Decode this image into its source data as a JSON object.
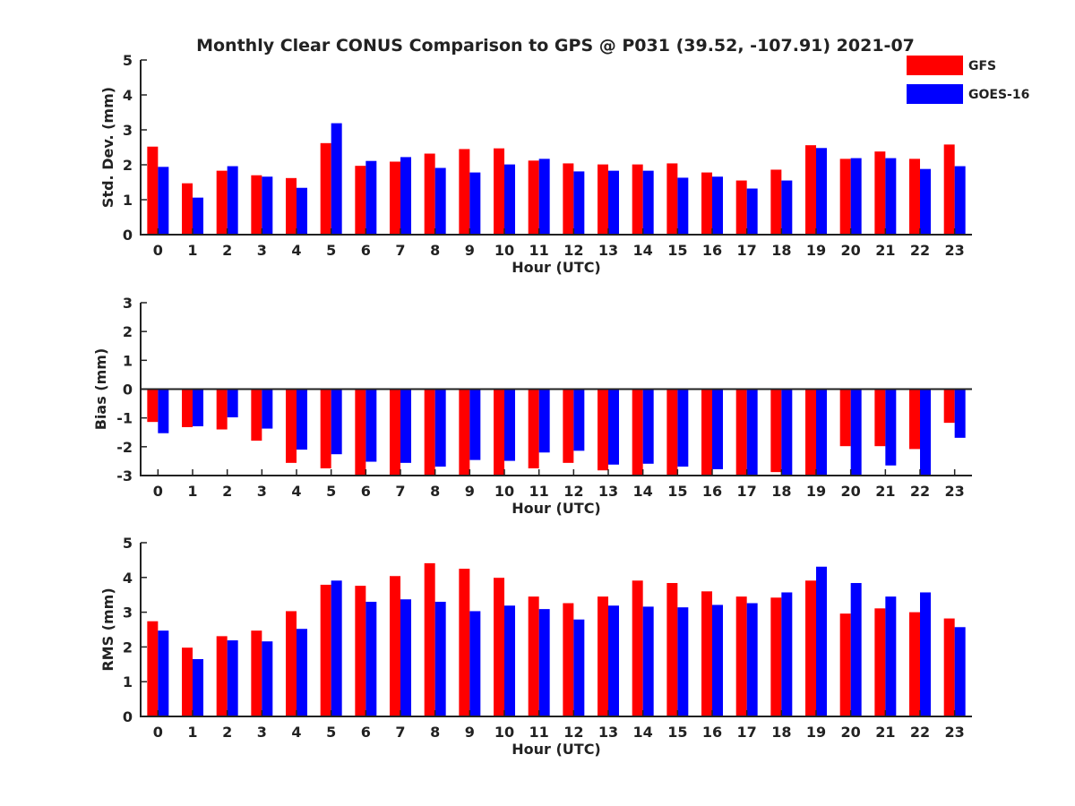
{
  "title": "Monthly Clear CONUS Comparison to GPS @ P031 (39.52, -107.91) 2021-07",
  "colors": {
    "GFS": "#ff0000",
    "GOES-16": "#0000ff",
    "axis": "#222222"
  },
  "chart_data": [
    {
      "type": "bar",
      "categories": [
        "0",
        "1",
        "2",
        "3",
        "4",
        "5",
        "6",
        "7",
        "8",
        "9",
        "10",
        "11",
        "12",
        "13",
        "14",
        "15",
        "16",
        "17",
        "18",
        "19",
        "20",
        "21",
        "22",
        "23"
      ],
      "xlabel": "Hour (UTC)",
      "ylabel": "Std. Dev. (mm)",
      "ylim": [
        0,
        5
      ],
      "yticks": [
        "0",
        "1",
        "2",
        "3",
        "4",
        "5"
      ],
      "legend": {
        "placement": "top-right",
        "entries": [
          "GFS",
          "GOES-16"
        ]
      },
      "series": [
        {
          "name": "GFS",
          "values": [
            2.52,
            1.47,
            1.83,
            1.7,
            1.62,
            2.62,
            1.97,
            2.09,
            2.32,
            2.45,
            2.47,
            2.12,
            2.04,
            2.01,
            2.01,
            2.04,
            1.78,
            1.55,
            1.86,
            2.56,
            2.17,
            2.38,
            2.17,
            2.58
          ]
        },
        {
          "name": "GOES-16",
          "values": [
            1.94,
            1.06,
            1.96,
            1.66,
            1.34,
            3.19,
            2.11,
            2.22,
            1.91,
            1.78,
            2.01,
            2.17,
            1.81,
            1.83,
            1.83,
            1.63,
            1.66,
            1.32,
            1.55,
            2.48,
            2.19,
            2.19,
            1.88,
            1.96
          ]
        }
      ]
    },
    {
      "type": "bar",
      "categories": [
        "0",
        "1",
        "2",
        "3",
        "4",
        "5",
        "6",
        "7",
        "8",
        "9",
        "10",
        "11",
        "12",
        "13",
        "14",
        "15",
        "16",
        "17",
        "18",
        "19",
        "20",
        "21",
        "22",
        "23"
      ],
      "xlabel": "Hour (UTC)",
      "ylabel": "Bias (mm)",
      "ylim": [
        -3,
        3
      ],
      "yticks": [
        "-3",
        "-2",
        "-1",
        "0",
        "1",
        "2",
        "3"
      ],
      "series": [
        {
          "name": "GFS",
          "values": [
            -1.14,
            -1.32,
            -1.4,
            -1.79,
            -2.56,
            -2.75,
            -3.0,
            -3.0,
            -3.0,
            -3.0,
            -3.0,
            -2.75,
            -2.56,
            -2.82,
            -3.0,
            -3.0,
            -3.0,
            -3.0,
            -2.88,
            -3.0,
            -1.98,
            -1.98,
            -2.08,
            -1.17
          ]
        },
        {
          "name": "GOES-16",
          "values": [
            -1.53,
            -1.29,
            -0.98,
            -1.37,
            -2.1,
            -2.26,
            -2.52,
            -2.56,
            -2.69,
            -2.46,
            -2.49,
            -2.2,
            -2.14,
            -2.62,
            -2.59,
            -2.69,
            -2.78,
            -3.0,
            -3.0,
            -3.0,
            -3.0,
            -2.65,
            -3.0,
            -1.69
          ]
        }
      ]
    },
    {
      "type": "bar",
      "categories": [
        "0",
        "1",
        "2",
        "3",
        "4",
        "5",
        "6",
        "7",
        "8",
        "9",
        "10",
        "11",
        "12",
        "13",
        "14",
        "15",
        "16",
        "17",
        "18",
        "19",
        "20",
        "21",
        "22",
        "23"
      ],
      "xlabel": "Hour (UTC)",
      "ylabel": "RMS (mm)",
      "ylim": [
        0,
        5
      ],
      "yticks": [
        "0",
        "1",
        "2",
        "3",
        "4",
        "5"
      ],
      "series": [
        {
          "name": "GFS",
          "values": [
            2.74,
            1.98,
            2.31,
            2.47,
            3.03,
            3.79,
            3.76,
            4.04,
            4.41,
            4.25,
            3.99,
            3.45,
            3.26,
            3.45,
            3.91,
            3.84,
            3.6,
            3.45,
            3.42,
            3.91,
            2.96,
            3.11,
            3.0,
            2.82
          ]
        },
        {
          "name": "GOES-16",
          "values": [
            2.47,
            1.65,
            2.19,
            2.16,
            2.52,
            3.91,
            3.3,
            3.37,
            3.3,
            3.03,
            3.19,
            3.09,
            2.79,
            3.19,
            3.16,
            3.14,
            3.21,
            3.26,
            3.57,
            4.31,
            3.84,
            3.45,
            3.57,
            2.57
          ]
        }
      ]
    }
  ]
}
